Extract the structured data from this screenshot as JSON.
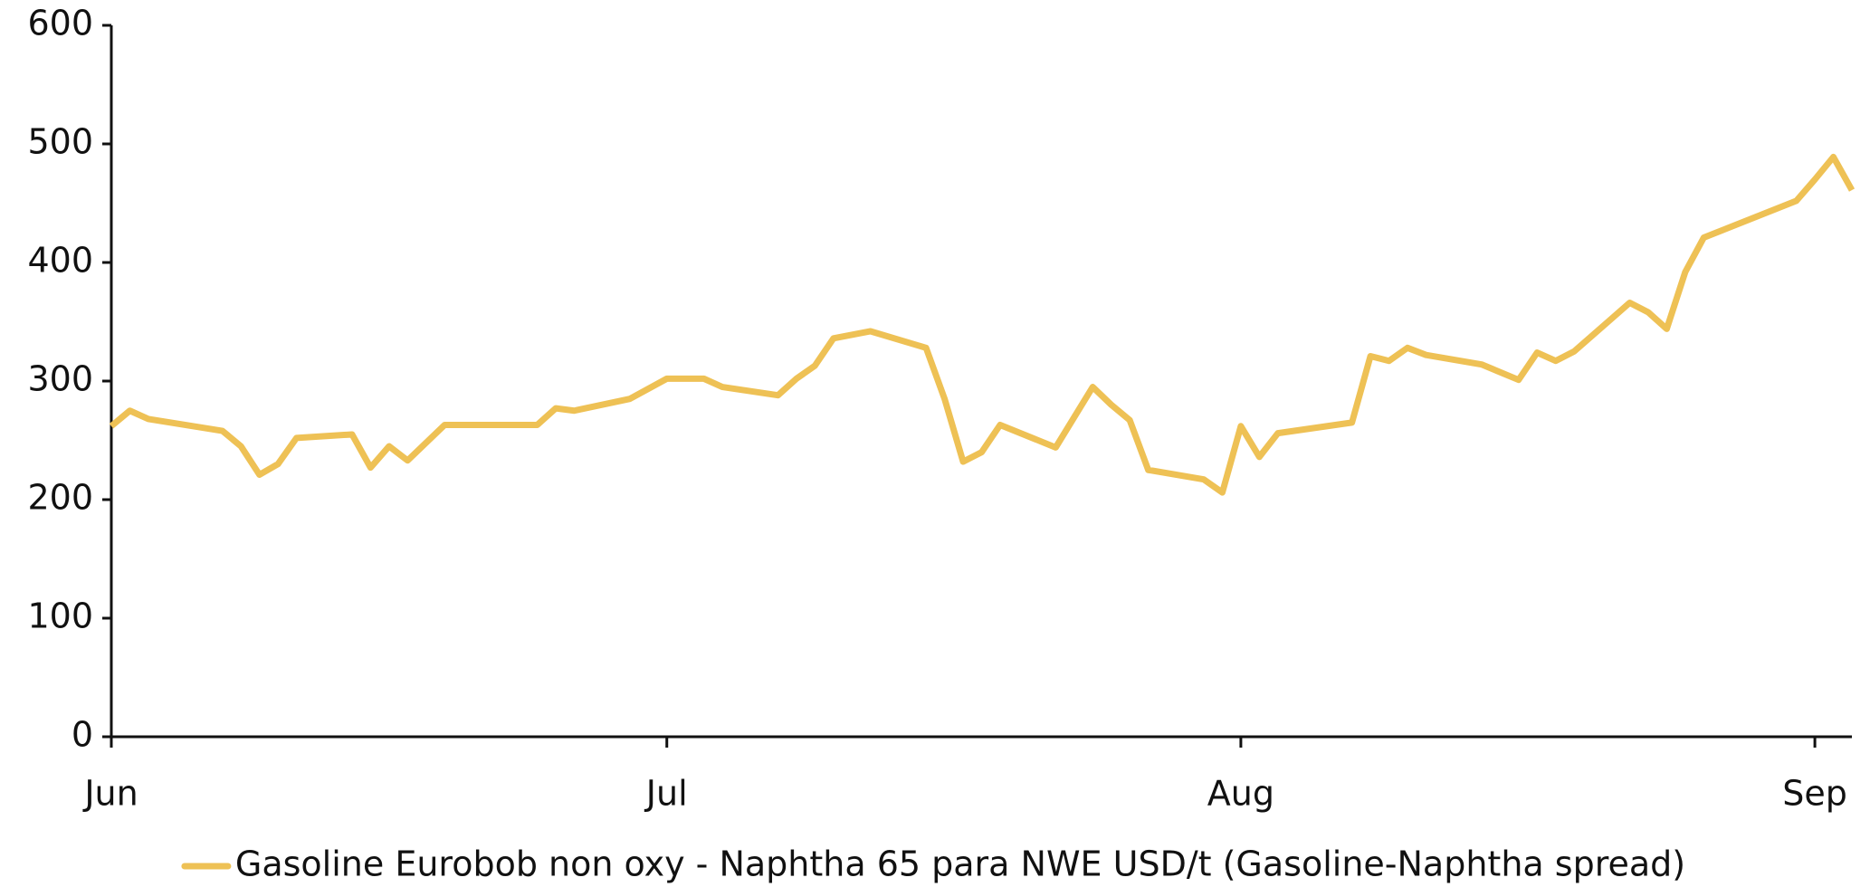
{
  "chart_data": {
    "type": "line",
    "x": [
      0,
      1,
      2,
      6,
      7,
      8,
      9,
      10,
      13,
      14,
      15,
      16,
      18,
      23,
      24,
      25,
      28,
      30,
      32,
      33,
      36,
      37,
      38,
      39,
      41,
      44,
      45,
      46,
      47,
      48,
      51,
      53,
      54,
      55,
      56,
      59,
      60,
      61,
      62,
      63,
      67,
      68,
      69,
      70,
      71,
      74,
      76,
      77,
      78,
      79,
      82,
      83,
      84,
      85,
      86,
      91,
      92,
      93,
      94
    ],
    "series": [
      {
        "name": "Gasoline Eurobob non oxy - Naphtha 65 para NWE USD/t (Gasoline-Naphtha spread)",
        "color": "#eec155",
        "values": [
          262,
          275,
          268,
          258,
          245,
          221,
          230,
          252,
          255,
          227,
          245,
          233,
          263,
          263,
          277,
          275,
          285,
          302,
          302,
          295,
          288,
          302,
          313,
          336,
          342,
          328,
          285,
          232,
          240,
          263,
          244,
          295,
          280,
          267,
          225,
          217,
          206,
          262,
          236,
          256,
          265,
          321,
          317,
          328,
          322,
          314,
          301,
          324,
          317,
          325,
          366,
          358,
          344,
          392,
          421,
          452,
          470,
          489,
          461
        ]
      }
    ],
    "xlim": [
      0,
      94
    ],
    "xticks": [
      {
        "value": 0,
        "label": "Jun"
      },
      {
        "value": 30,
        "label": "Jul"
      },
      {
        "value": 61,
        "label": "Aug"
      },
      {
        "value": 92,
        "label": "Sep"
      }
    ],
    "ylim": [
      0,
      600
    ],
    "yticks": [
      0,
      100,
      200,
      300,
      400,
      500,
      600
    ],
    "legend": "bottom"
  }
}
